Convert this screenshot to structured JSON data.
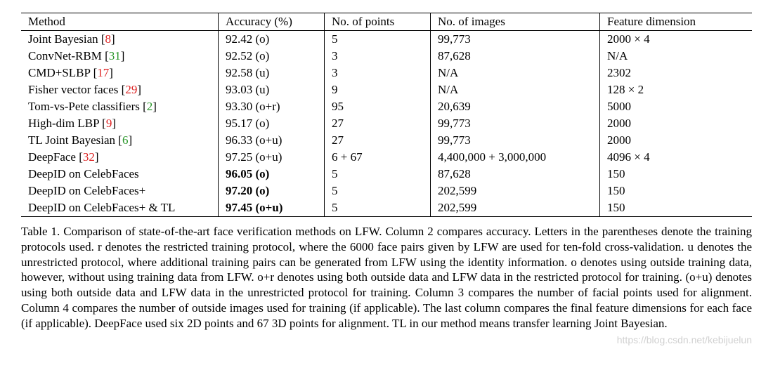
{
  "ref_colors": [
    "#d22",
    "#2a962a",
    "#d22",
    "#d22",
    "#2a962a",
    "#d22",
    "#2a962a",
    "#d22"
  ],
  "headers": [
    "Method",
    "Accuracy (%)",
    "No. of points",
    "No. of images",
    "Feature dimension"
  ],
  "rows": [
    {
      "method_pre": "Joint Bayesian [",
      "ref": "8",
      "method_post": "]",
      "acc": "92.42 (o)",
      "pts": "5",
      "img": "99,773",
      "feat": "2000 × 4",
      "bold": false
    },
    {
      "method_pre": "ConvNet-RBM [",
      "ref": "31",
      "method_post": "]",
      "acc": "92.52 (o)",
      "pts": "3",
      "img": "87,628",
      "feat": "N/A",
      "bold": false
    },
    {
      "method_pre": "CMD+SLBP [",
      "ref": "17",
      "method_post": "]",
      "acc": "92.58 (u)",
      "pts": "3",
      "img": "N/A",
      "feat": "2302",
      "bold": false
    },
    {
      "method_pre": "Fisher vector faces [",
      "ref": "29",
      "method_post": "]",
      "acc": "93.03 (u)",
      "pts": "9",
      "img": "N/A",
      "feat": "128 × 2",
      "bold": false
    },
    {
      "method_pre": "Tom-vs-Pete classifiers [",
      "ref": "2",
      "method_post": "]",
      "acc": "93.30 (o+r)",
      "pts": "95",
      "img": "20,639",
      "feat": "5000",
      "bold": false
    },
    {
      "method_pre": "High-dim LBP [",
      "ref": "9",
      "method_post": "]",
      "acc": "95.17 (o)",
      "pts": "27",
      "img": "99,773",
      "feat": "2000",
      "bold": false
    },
    {
      "method_pre": "TL Joint Bayesian [",
      "ref": "6",
      "method_post": "]",
      "acc": "96.33 (o+u)",
      "pts": "27",
      "img": "99,773",
      "feat": "2000",
      "bold": false
    },
    {
      "method_pre": "DeepFace [",
      "ref": "32",
      "method_post": "]",
      "acc": "97.25 (o+u)",
      "pts": "6 + 67",
      "img": "4,400,000 + 3,000,000",
      "feat": "4096 × 4",
      "bold": false
    },
    {
      "method_pre": "DeepID on CelebFaces",
      "ref": "",
      "method_post": "",
      "acc": "96.05 (o)",
      "pts": "5",
      "img": "87,628",
      "feat": "150",
      "bold": true
    },
    {
      "method_pre": "DeepID on CelebFaces+",
      "ref": "",
      "method_post": "",
      "acc": "97.20 (o)",
      "pts": "5",
      "img": "202,599",
      "feat": "150",
      "bold": true
    },
    {
      "method_pre": "DeepID on CelebFaces+ & TL",
      "ref": "",
      "method_post": "",
      "acc": "97.45 (o+u)",
      "pts": "5",
      "img": "202,599",
      "feat": "150",
      "bold": true
    }
  ],
  "caption": "Table 1. Comparison of state-of-the-art face verification methods on LFW. Column 2 compares accuracy. Letters in the parentheses denote the training protocols used. r denotes the restricted training protocol, where the 6000 face pairs given by LFW are used for ten-fold cross-validation. u denotes the unrestricted protocol, where additional training pairs can be generated from LFW using the identity information. o denotes using outside training data, however, without using training data from LFW. o+r denotes using both outside data and LFW data in the restricted protocol for training. (o+u) denotes using both outside data and LFW data in the unrestricted protocol for training. Column 3 compares the number of facial points used for alignment. Column 4 compares the number of outside images used for training (if applicable). The last column compares the final feature dimensions for each face (if applicable). DeepFace used six 2D points and 67 3D points for alignment. TL in our method means transfer learning Joint Bayesian.",
  "watermark": "https://blog.csdn.net/kebijuelun"
}
